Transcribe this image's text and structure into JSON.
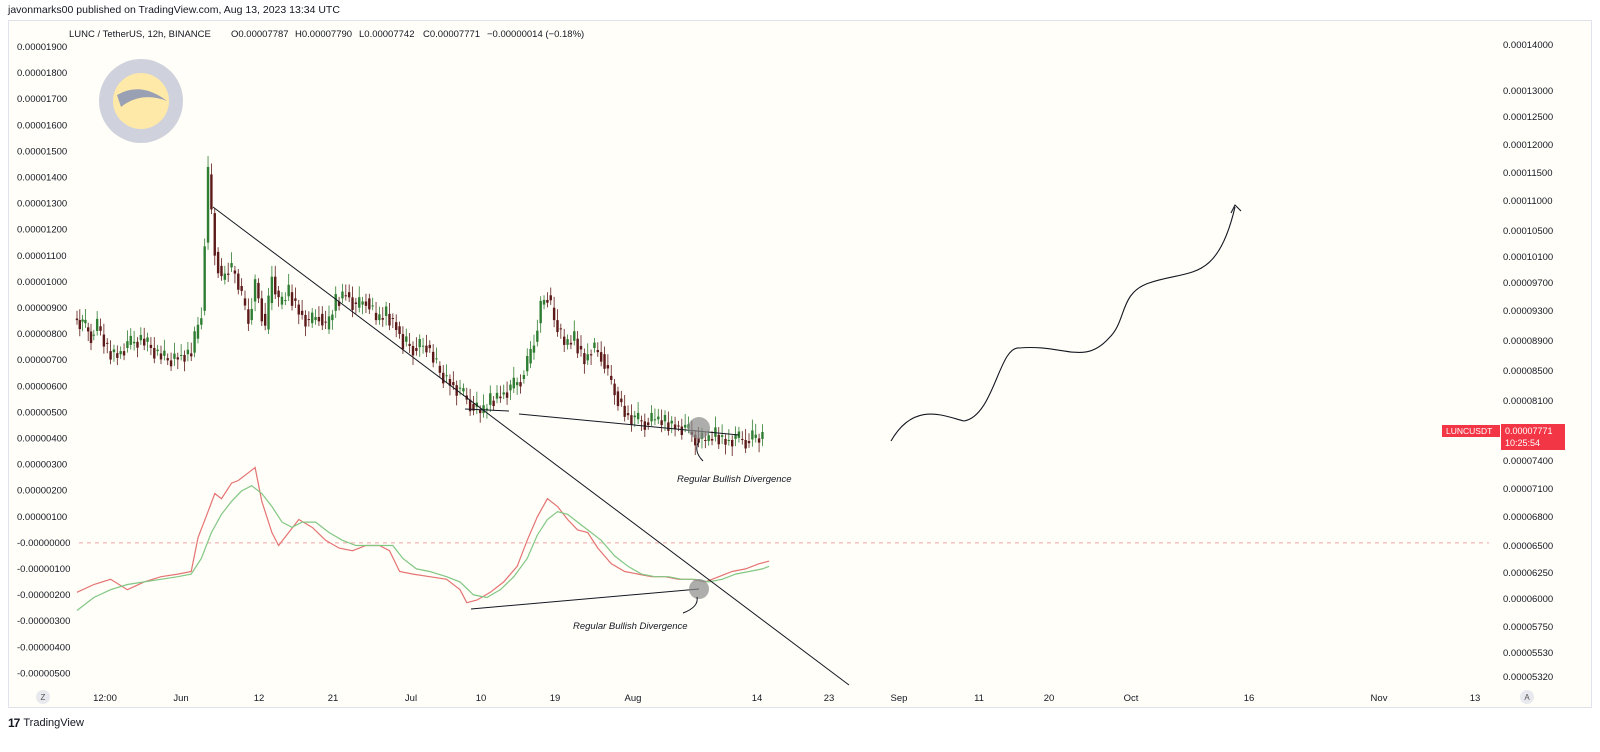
{
  "header": {
    "published": "javonmarks00 published on TradingView.com, Aug 13, 2023 13:34 UTC"
  },
  "legend": {
    "symbol": "LUNC / TetherUS, 12h, BINANCE",
    "o": "O0.00007787",
    "h": "H0.00007790",
    "l": "L0.00007742",
    "c": "C0.00007771",
    "change": "−0.00000014 (−0.18%)"
  },
  "price_badge": {
    "ticker": "LUNCUSDT",
    "price": "0.00007771",
    "countdown": "10:25:54",
    "color": "#f23645"
  },
  "footer": {
    "brand": "TradingView",
    "logo_icon": "tradingview-logo-icon"
  },
  "colors": {
    "up": "#089981",
    "down": "#f23645",
    "candle_up": "#2e7d32",
    "candle_down": "#5d1a1a",
    "macd": "#e57373",
    "signal": "#81c784",
    "badge": "#f23645"
  },
  "chart_data": {
    "type": "candlestick",
    "title": "",
    "xlabel": "",
    "ylabel": "",
    "x_ticks": [
      "12:00",
      "Jun",
      "12",
      "21",
      "Jul",
      "10",
      "19",
      "Aug",
      "14",
      "23",
      "Sep",
      "11",
      "20",
      "Oct",
      "16",
      "Nov",
      "13"
    ],
    "right_axis": {
      "scale": "log",
      "labels": [
        "0.00014000",
        "0.00013000",
        "0.00012500",
        "0.00012000",
        "0.00011500",
        "0.00011000",
        "0.00010500",
        "0.00010100",
        "0.00009700",
        "0.00009300",
        "0.00008900",
        "0.00008500",
        "0.00008100",
        "0.00007400",
        "0.00007100",
        "0.00006800",
        "0.00006500",
        "0.00006250",
        "0.00006000",
        "0.00005750",
        "0.00005530",
        "0.00005320"
      ]
    },
    "left_axis": {
      "labels": [
        "0.00001900",
        "0.00001800",
        "0.00001700",
        "0.00001600",
        "0.00001500",
        "0.00001400",
        "0.00001300",
        "0.00001200",
        "0.00001100",
        "0.00001000",
        "0.00000900",
        "0.00000800",
        "0.00000700",
        "0.00000600",
        "0.00000500",
        "0.00000400",
        "0.00000300",
        "0.00000200",
        "0.00000100",
        "-0.00000000",
        "-0.00000100",
        "-0.00000200",
        "-0.00000300",
        "-0.00000400",
        "-0.00000500"
      ]
    },
    "last_price": 7.771e-05,
    "annotations": [
      {
        "text": "Regular Bullish Divergence",
        "panel": "price"
      },
      {
        "text": "Regular Bullish Divergence",
        "panel": "oscillator"
      }
    ],
    "series": [
      {
        "kind": "price-close-path",
        "points": [
          [
            0,
            8.35
          ],
          [
            5,
            8.2
          ],
          [
            10,
            7.8
          ],
          [
            14,
            8.1
          ],
          [
            20,
            7.3
          ],
          [
            26,
            7.2
          ],
          [
            32,
            7.5
          ],
          [
            40,
            7.7
          ],
          [
            48,
            7.3
          ],
          [
            56,
            7.0
          ],
          [
            62,
            7.15
          ],
          [
            70,
            7.25
          ],
          [
            76,
            8.6
          ],
          [
            80,
            13.0
          ],
          [
            84,
            10.5
          ],
          [
            88,
            9.6
          ],
          [
            92,
            10.0
          ],
          [
            96,
            9.8
          ],
          [
            100,
            9.0
          ],
          [
            104,
            8.3
          ],
          [
            108,
            9.5
          ],
          [
            114,
            8.0
          ],
          [
            118,
            9.7
          ],
          [
            122,
            8.8
          ],
          [
            128,
            9.2
          ],
          [
            134,
            8.6
          ],
          [
            140,
            8.2
          ],
          [
            146,
            8.5
          ],
          [
            150,
            8.0
          ],
          [
            156,
            8.9
          ],
          [
            162,
            9.2
          ],
          [
            168,
            8.7
          ],
          [
            174,
            9.0
          ],
          [
            180,
            8.3
          ],
          [
            186,
            8.5
          ],
          [
            192,
            8.1
          ],
          [
            196,
            7.6
          ],
          [
            202,
            7.4
          ],
          [
            210,
            7.5
          ],
          [
            218,
            6.6
          ],
          [
            224,
            6.3
          ],
          [
            230,
            6.0
          ],
          [
            236,
            5.6
          ],
          [
            242,
            5.3
          ],
          [
            248,
            5.7
          ],
          [
            254,
            5.9
          ],
          [
            260,
            6.1
          ],
          [
            266,
            6.4
          ],
          [
            270,
            6.9
          ],
          [
            274,
            7.6
          ],
          [
            278,
            8.8
          ],
          [
            282,
            9.1
          ],
          [
            286,
            8.3
          ],
          [
            292,
            7.5
          ],
          [
            298,
            7.7
          ],
          [
            304,
            7.0
          ],
          [
            308,
            7.4
          ],
          [
            314,
            7.2
          ],
          [
            318,
            6.5
          ],
          [
            322,
            6.0
          ],
          [
            328,
            5.3
          ],
          [
            334,
            5.1
          ],
          [
            340,
            5.0
          ],
          [
            346,
            5.1
          ],
          [
            352,
            5.0
          ],
          [
            358,
            4.9
          ],
          [
            364,
            4.8
          ],
          [
            370,
            4.5
          ],
          [
            376,
            4.4
          ],
          [
            382,
            4.6
          ],
          [
            388,
            4.4
          ],
          [
            394,
            4.5
          ],
          [
            400,
            4.4
          ],
          [
            404,
            4.5
          ],
          [
            410,
            4.45
          ]
        ]
      },
      {
        "kind": "macd",
        "name": "",
        "points": [
          [
            0,
            -1.9
          ],
          [
            10,
            -1.6
          ],
          [
            20,
            -1.4
          ],
          [
            30,
            -1.8
          ],
          [
            40,
            -1.5
          ],
          [
            50,
            -1.3
          ],
          [
            60,
            -1.2
          ],
          [
            68,
            -1.1
          ],
          [
            72,
            0.2
          ],
          [
            78,
            1.2
          ],
          [
            82,
            1.9
          ],
          [
            86,
            1.7
          ],
          [
            92,
            2.3
          ],
          [
            96,
            2.4
          ],
          [
            102,
            2.7
          ],
          [
            106,
            2.9
          ],
          [
            110,
            1.6
          ],
          [
            116,
            0.4
          ],
          [
            120,
            -0.1
          ],
          [
            126,
            0.4
          ],
          [
            132,
            0.9
          ],
          [
            140,
            0.6
          ],
          [
            148,
            0.1
          ],
          [
            156,
            -0.2
          ],
          [
            164,
            -0.3
          ],
          [
            172,
            -0.1
          ],
          [
            180,
            -0.1
          ],
          [
            186,
            -0.3
          ],
          [
            192,
            -1.1
          ],
          [
            200,
            -1.2
          ],
          [
            210,
            -1.3
          ],
          [
            220,
            -1.4
          ],
          [
            228,
            -1.8
          ],
          [
            232,
            -2.3
          ],
          [
            238,
            -2.2
          ],
          [
            246,
            -1.9
          ],
          [
            254,
            -1.5
          ],
          [
            262,
            -0.9
          ],
          [
            268,
            0.1
          ],
          [
            274,
            1.0
          ],
          [
            280,
            1.7
          ],
          [
            286,
            1.4
          ],
          [
            292,
            0.9
          ],
          [
            298,
            0.5
          ],
          [
            304,
            0.4
          ],
          [
            310,
            -0.2
          ],
          [
            318,
            -0.8
          ],
          [
            326,
            -1.1
          ],
          [
            334,
            -1.2
          ],
          [
            342,
            -1.3
          ],
          [
            350,
            -1.3
          ],
          [
            358,
            -1.4
          ],
          [
            366,
            -1.4
          ],
          [
            374,
            -1.5
          ],
          [
            382,
            -1.3
          ],
          [
            390,
            -1.1
          ],
          [
            398,
            -1.0
          ],
          [
            406,
            -0.8
          ],
          [
            412,
            -0.7
          ]
        ]
      },
      {
        "kind": "signal",
        "name": "",
        "points": [
          [
            0,
            -2.6
          ],
          [
            10,
            -2.1
          ],
          [
            20,
            -1.8
          ],
          [
            30,
            -1.6
          ],
          [
            40,
            -1.5
          ],
          [
            50,
            -1.4
          ],
          [
            60,
            -1.3
          ],
          [
            68,
            -1.2
          ],
          [
            74,
            -0.6
          ],
          [
            80,
            0.4
          ],
          [
            86,
            1.1
          ],
          [
            92,
            1.6
          ],
          [
            98,
            2.0
          ],
          [
            104,
            2.2
          ],
          [
            110,
            1.9
          ],
          [
            116,
            1.4
          ],
          [
            122,
            0.8
          ],
          [
            128,
            0.6
          ],
          [
            134,
            0.8
          ],
          [
            142,
            0.8
          ],
          [
            150,
            0.4
          ],
          [
            158,
            0.1
          ],
          [
            166,
            -0.1
          ],
          [
            174,
            -0.1
          ],
          [
            182,
            -0.1
          ],
          [
            188,
            -0.1
          ],
          [
            194,
            -0.6
          ],
          [
            202,
            -1.0
          ],
          [
            210,
            -1.1
          ],
          [
            220,
            -1.3
          ],
          [
            228,
            -1.5
          ],
          [
            236,
            -2.0
          ],
          [
            244,
            -2.1
          ],
          [
            252,
            -1.8
          ],
          [
            260,
            -1.3
          ],
          [
            268,
            -0.6
          ],
          [
            274,
            0.3
          ],
          [
            280,
            0.9
          ],
          [
            286,
            1.2
          ],
          [
            292,
            1.1
          ],
          [
            298,
            0.8
          ],
          [
            304,
            0.5
          ],
          [
            312,
            0.1
          ],
          [
            320,
            -0.5
          ],
          [
            328,
            -0.9
          ],
          [
            336,
            -1.2
          ],
          [
            344,
            -1.3
          ],
          [
            352,
            -1.3
          ],
          [
            360,
            -1.4
          ],
          [
            368,
            -1.4
          ],
          [
            376,
            -1.5
          ],
          [
            384,
            -1.4
          ],
          [
            392,
            -1.2
          ],
          [
            400,
            -1.1
          ],
          [
            408,
            -1.0
          ],
          [
            412,
            -0.9
          ]
        ]
      }
    ]
  }
}
